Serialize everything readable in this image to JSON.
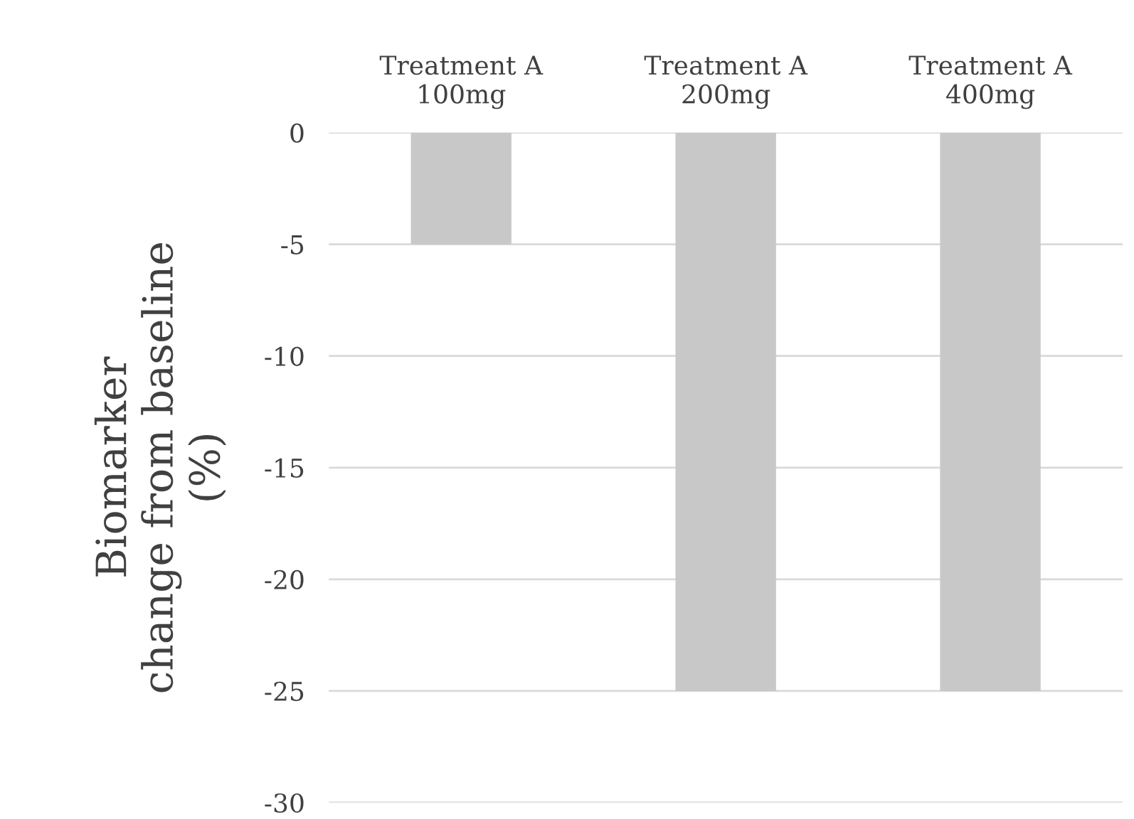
{
  "chart_data": {
    "type": "bar",
    "categories": [
      "Treatment A\n100mg",
      "Treatment A\n200mg",
      "Treatment A\n400mg"
    ],
    "values": [
      -5,
      -25,
      -25
    ],
    "color": "#c8c8c8",
    "ylabel": "Biomarker\nchange from baseline\n(%)",
    "ylim": [
      -30,
      0
    ],
    "yticks": [
      0,
      -5,
      -10,
      -15,
      -20,
      -25,
      -30
    ],
    "grid": "y",
    "legend": false
  }
}
